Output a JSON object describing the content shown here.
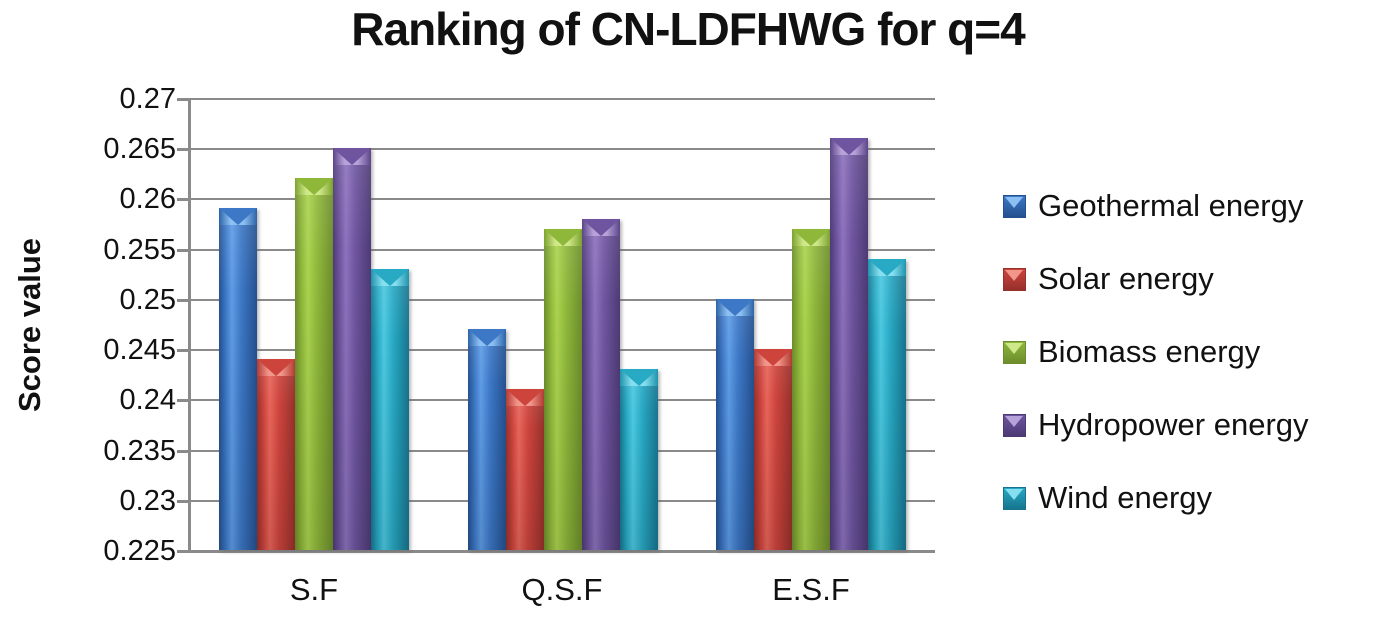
{
  "title": "Ranking of CN-LDFHWG for q=4",
  "chart_data": {
    "type": "bar",
    "title": "Ranking of CN-LDFHWG for q=4",
    "xlabel": "",
    "ylabel": "Score value",
    "categories": [
      "S.F",
      "Q.S.F",
      "E.S.F"
    ],
    "series": [
      {
        "name": "Geothermal energy",
        "values": [
          0.259,
          0.247,
          0.25
        ],
        "colors": {
          "main": "#3d78c6",
          "light": "#5e9ce6",
          "dark": "#24508f",
          "cap_light": "#8cc0f2",
          "cap_dark": "#2d63a8"
        }
      },
      {
        "name": "Solar energy",
        "values": [
          0.244,
          0.241,
          0.245
        ],
        "colors": {
          "main": "#cd443d",
          "light": "#e6655a",
          "dark": "#96302b",
          "cap_light": "#f2958a",
          "cap_dark": "#b23a33"
        }
      },
      {
        "name": "Biomass energy",
        "values": [
          0.262,
          0.257,
          0.257
        ],
        "colors": {
          "main": "#8fb83a",
          "light": "#abd34f",
          "dark": "#6d8c2c",
          "cap_light": "#cfe88a",
          "cap_dark": "#7da32f"
        }
      },
      {
        "name": "Hydropower energy",
        "values": [
          0.265,
          0.258,
          0.266
        ],
        "colors": {
          "main": "#6f55a0",
          "light": "#8d72bd",
          "dark": "#4d3a75",
          "cap_light": "#b7a2d9",
          "cap_dark": "#5b4488"
        }
      },
      {
        "name": "Wind energy",
        "values": [
          0.253,
          0.243,
          0.254
        ],
        "colors": {
          "main": "#28a9c4",
          "light": "#4cc8e0",
          "dark": "#17748e",
          "cap_light": "#86dff0",
          "cap_dark": "#1f93ad"
        }
      }
    ],
    "ylim": [
      0.225,
      0.27
    ],
    "ytick_step": 0.005,
    "ytick_labels": [
      "0.27",
      "0.265",
      "0.26",
      "0.255",
      "0.25",
      "0.245",
      "0.24",
      "0.235",
      "0.23",
      "0.225"
    ],
    "grid": true,
    "legend_position": "right"
  },
  "colors": {
    "gridline": "#8a8a8a",
    "axis": "#8a8a8a",
    "text": "#111111",
    "background": "#ffffff"
  }
}
